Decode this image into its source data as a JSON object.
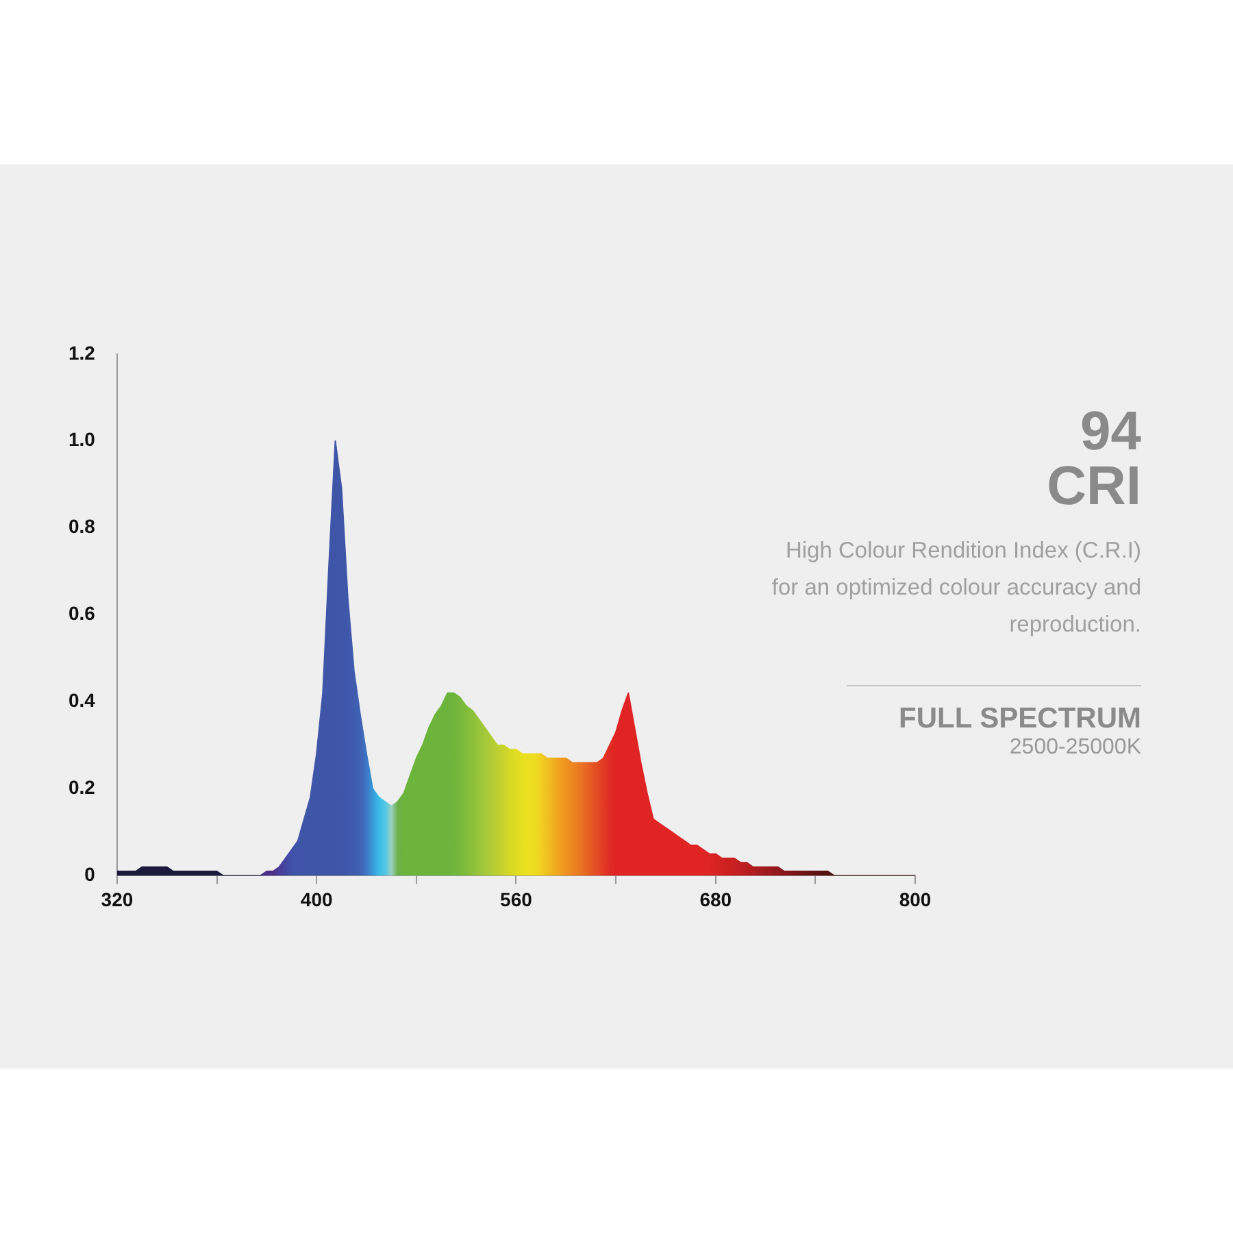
{
  "chart_data": {
    "type": "area",
    "categories": [
      "320",
      null,
      null,
      null,
      null,
      null,
      null,
      null,
      null,
      null,
      null,
      null,
      null,
      null,
      null,
      null,
      null,
      null,
      null,
      null,
      null,
      null,
      null,
      null,
      null,
      null,
      null,
      null,
      null,
      null,
      null,
      null,
      "400",
      null,
      null,
      null,
      null,
      null,
      null,
      null,
      null,
      null,
      null,
      null,
      null,
      null,
      null,
      null,
      null,
      null,
      null,
      null,
      null,
      null,
      null,
      null,
      null,
      null,
      null,
      null,
      null,
      null,
      null,
      null,
      "560",
      null,
      null,
      null,
      null,
      null,
      null,
      null,
      null,
      null,
      null,
      null,
      null,
      null,
      null,
      null,
      null,
      null,
      null,
      null,
      null,
      null,
      null,
      null,
      null,
      null,
      null,
      null,
      null,
      null,
      null,
      null,
      "680",
      null,
      null,
      null,
      null,
      null,
      null,
      null,
      null,
      null,
      null,
      null,
      null,
      null,
      null,
      null,
      null,
      null,
      null,
      null,
      null,
      null,
      null,
      null,
      null,
      null,
      null,
      null,
      null,
      null,
      null,
      null,
      "800"
    ],
    "values": [
      0.01,
      0.01,
      0.01,
      0.01,
      0.02,
      0.02,
      0.02,
      0.02,
      0.02,
      0.01,
      0.01,
      0.01,
      0.01,
      0.01,
      0.01,
      0.01,
      0.01,
      0,
      0,
      0,
      0,
      0,
      0,
      0,
      0.01,
      0.01,
      0.02,
      0.04,
      0.06,
      0.08,
      0.13,
      0.18,
      0.28,
      0.42,
      0.72,
      1.0,
      0.89,
      0.64,
      0.47,
      0.37,
      0.28,
      0.2,
      0.18,
      0.17,
      0.16,
      0.17,
      0.19,
      0.23,
      0.27,
      0.3,
      0.34,
      0.37,
      0.39,
      0.42,
      0.42,
      0.41,
      0.39,
      0.38,
      0.36,
      0.34,
      0.32,
      0.3,
      0.3,
      0.29,
      0.29,
      0.28,
      0.28,
      0.28,
      0.28,
      0.27,
      0.27,
      0.27,
      0.27,
      0.26,
      0.26,
      0.26,
      0.26,
      0.26,
      0.27,
      0.3,
      0.33,
      0.38,
      0.42,
      0.34,
      0.26,
      0.19,
      0.13,
      0.12,
      0.11,
      0.1,
      0.09,
      0.08,
      0.07,
      0.07,
      0.06,
      0.05,
      0.05,
      0.04,
      0.04,
      0.04,
      0.03,
      0.03,
      0.02,
      0.02,
      0.02,
      0.02,
      0.02,
      0.01,
      0.01,
      0.01,
      0.01,
      0.01,
      0.01,
      0.01,
      0.01,
      0,
      0,
      0,
      0,
      0,
      0,
      0,
      0,
      0,
      0,
      0,
      0,
      0,
      0
    ],
    "colors": [
      "#1c1a3c",
      "#1c1a3c",
      "#1c1a3c",
      "#1c1a3c",
      "#1c1a3c",
      "#1c1a3c",
      "#1c1a3c",
      "#1c1a3c",
      "#1c1a3c",
      "#1c1a3c",
      "#1c1a3c",
      "#1c1a3c",
      "#1c1a3c",
      "#1c1a3c",
      "#1c1a3c",
      "#1c1a3c",
      "#1c1a3c",
      "#1c1a3c",
      "#1c1a3c",
      "#1c1a3c",
      "#1c1a3c",
      "#1c1a3c",
      "#1c1a3c",
      "#3a2a78",
      "#4a2f8a",
      "#4a2f8a",
      "#4a3c9a",
      "#4445a0",
      "#4050a8",
      "#3f55a8",
      "#3f55a8",
      "#3f55a8",
      "#3f55a8",
      "#3f55a8",
      "#3f55a8",
      "#3f55a8",
      "#3f55a8",
      "#3f58aa",
      "#3f5cae",
      "#3f62b4",
      "#3d75c4",
      "#3a9ad8",
      "#3cbce8",
      "#50c8e6",
      "#9ad0c0",
      "#6ab04a",
      "#6cb43c",
      "#6cb43c",
      "#6cb43c",
      "#6cb43c",
      "#6cb43c",
      "#6cb43c",
      "#6cb43c",
      "#6cb43c",
      "#6eb63c",
      "#76b83c",
      "#80bc3a",
      "#8cc03a",
      "#98c43a",
      "#a4c83a",
      "#b0cc36",
      "#bcd030",
      "#c8d42c",
      "#d4d826",
      "#e0dc20",
      "#e8e020",
      "#ece020",
      "#eedc20",
      "#f0d020",
      "#f0c020",
      "#f0b020",
      "#f0a020",
      "#ee9420",
      "#ec8822",
      "#ea7a22",
      "#e86a24",
      "#e65a24",
      "#e44a24",
      "#e23a24",
      "#e02c24",
      "#e02424",
      "#e02424",
      "#e02424",
      "#e02424",
      "#e02424",
      "#e02424",
      "#e02424",
      "#e02424",
      "#e02424",
      "#e02424",
      "#e02424",
      "#e02424",
      "#e02424",
      "#e02424",
      "#e02424",
      "#de2424",
      "#d82222",
      "#d22222",
      "#cc2020",
      "#c62020",
      "#c01e20",
      "#b81e20",
      "#b01c20",
      "#a81c20",
      "#a01a1e",
      "#98181c",
      "#90181c",
      "#88161a",
      "#801618",
      "#781418",
      "#701416",
      "#681414",
      "#601214",
      "#581212",
      "#501212",
      "#481010",
      "#401010",
      "#3a1010",
      "#3a1010",
      "#3a1010",
      "#3a1010",
      "#3a1010",
      "#3a1010",
      "#3a1010",
      "#3a1010",
      "#3a1010",
      "#3a1010",
      "#3a1010",
      "#3a1010"
    ],
    "ylim": [
      0,
      1.2
    ],
    "yticks": [
      0,
      0.2,
      0.4,
      0.6,
      0.8,
      {
        "value": 1,
        "label": "1.0"
      },
      1.2
    ],
    "grid": false,
    "annotations": [
      "94",
      "CRI",
      "High Colour Rendition Index (C.R.I) for an optimized colour accuracy and reproduction.",
      "FULL SPECTRUM",
      "2500-25000K"
    ]
  }
}
